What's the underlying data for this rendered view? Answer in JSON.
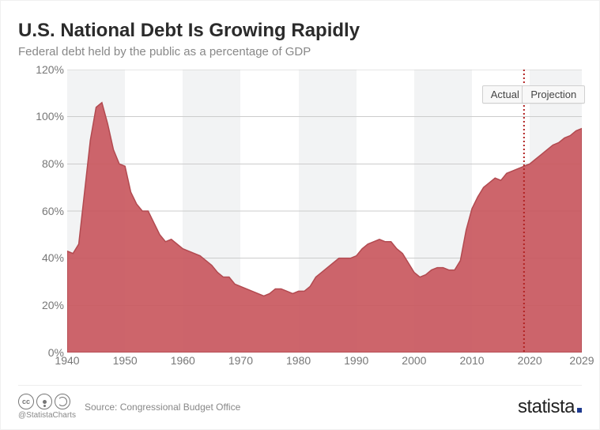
{
  "title": "U.S. National Debt Is Growing Rapidly",
  "subtitle": "Federal debt held by the public as a percentage of GDP",
  "footer": {
    "handle": "@StatistaCharts",
    "source_label": "Source:",
    "source_name": "Congressional Budget Office",
    "brand": "statista"
  },
  "chart": {
    "type": "area",
    "x_min": 1940,
    "x_max": 2029,
    "y_min": 0,
    "y_max": 120,
    "y_ticks": [
      0,
      20,
      40,
      60,
      80,
      100,
      120
    ],
    "y_tick_suffix": "%",
    "x_ticks": [
      1940,
      1950,
      1960,
      1970,
      1980,
      1990,
      2000,
      2010,
      2020,
      2029
    ],
    "band_edges": [
      1940,
      1950,
      1960,
      1970,
      1980,
      1990,
      2000,
      2010,
      2020,
      2029
    ],
    "band_colors": [
      "#f2f3f4",
      "#ffffff"
    ],
    "grid_color": "#cccccc",
    "axis_label_color": "#777777",
    "axis_fontsize": 14,
    "area_fill": "#c9585e",
    "area_fill_opacity": 0.92,
    "area_stroke": "#b24a50",
    "area_stroke_width": 1.5,
    "divider_year": 2019,
    "divider_color": "#b22222",
    "divider_dash": "2,3",
    "divider_width": 2,
    "legend": {
      "actual": {
        "label": "Actual",
        "anchor_year": 2015.3
      },
      "projection": {
        "label": "Projection",
        "anchor_year": 2024.0
      },
      "bg": "#f8f8f8",
      "border": "#d0d0d0",
      "fontsize": 13
    },
    "series": [
      {
        "x": 1940,
        "y": 43
      },
      {
        "x": 1941,
        "y": 42
      },
      {
        "x": 1942,
        "y": 46
      },
      {
        "x": 1943,
        "y": 68
      },
      {
        "x": 1944,
        "y": 90
      },
      {
        "x": 1945,
        "y": 104
      },
      {
        "x": 1946,
        "y": 106
      },
      {
        "x": 1947,
        "y": 97
      },
      {
        "x": 1948,
        "y": 86
      },
      {
        "x": 1949,
        "y": 80
      },
      {
        "x": 1950,
        "y": 79
      },
      {
        "x": 1951,
        "y": 68
      },
      {
        "x": 1952,
        "y": 63
      },
      {
        "x": 1953,
        "y": 60
      },
      {
        "x": 1954,
        "y": 60
      },
      {
        "x": 1955,
        "y": 55
      },
      {
        "x": 1956,
        "y": 50
      },
      {
        "x": 1957,
        "y": 47
      },
      {
        "x": 1958,
        "y": 48
      },
      {
        "x": 1959,
        "y": 46
      },
      {
        "x": 1960,
        "y": 44
      },
      {
        "x": 1961,
        "y": 43
      },
      {
        "x": 1962,
        "y": 42
      },
      {
        "x": 1963,
        "y": 41
      },
      {
        "x": 1964,
        "y": 39
      },
      {
        "x": 1965,
        "y": 37
      },
      {
        "x": 1966,
        "y": 34
      },
      {
        "x": 1967,
        "y": 32
      },
      {
        "x": 1968,
        "y": 32
      },
      {
        "x": 1969,
        "y": 29
      },
      {
        "x": 1970,
        "y": 28
      },
      {
        "x": 1971,
        "y": 27
      },
      {
        "x": 1972,
        "y": 26
      },
      {
        "x": 1973,
        "y": 25
      },
      {
        "x": 1974,
        "y": 24
      },
      {
        "x": 1975,
        "y": 25
      },
      {
        "x": 1976,
        "y": 27
      },
      {
        "x": 1977,
        "y": 27
      },
      {
        "x": 1978,
        "y": 26
      },
      {
        "x": 1979,
        "y": 25
      },
      {
        "x": 1980,
        "y": 26
      },
      {
        "x": 1981,
        "y": 26
      },
      {
        "x": 1982,
        "y": 28
      },
      {
        "x": 1983,
        "y": 32
      },
      {
        "x": 1984,
        "y": 34
      },
      {
        "x": 1985,
        "y": 36
      },
      {
        "x": 1986,
        "y": 38
      },
      {
        "x": 1987,
        "y": 40
      },
      {
        "x": 1988,
        "y": 40
      },
      {
        "x": 1989,
        "y": 40
      },
      {
        "x": 1990,
        "y": 41
      },
      {
        "x": 1991,
        "y": 44
      },
      {
        "x": 1992,
        "y": 46
      },
      {
        "x": 1993,
        "y": 47
      },
      {
        "x": 1994,
        "y": 48
      },
      {
        "x": 1995,
        "y": 47
      },
      {
        "x": 1996,
        "y": 47
      },
      {
        "x": 1997,
        "y": 44
      },
      {
        "x": 1998,
        "y": 42
      },
      {
        "x": 1999,
        "y": 38
      },
      {
        "x": 2000,
        "y": 34
      },
      {
        "x": 2001,
        "y": 32
      },
      {
        "x": 2002,
        "y": 33
      },
      {
        "x": 2003,
        "y": 35
      },
      {
        "x": 2004,
        "y": 36
      },
      {
        "x": 2005,
        "y": 36
      },
      {
        "x": 2006,
        "y": 35
      },
      {
        "x": 2007,
        "y": 35
      },
      {
        "x": 2008,
        "y": 39
      },
      {
        "x": 2009,
        "y": 52
      },
      {
        "x": 2010,
        "y": 61
      },
      {
        "x": 2011,
        "y": 66
      },
      {
        "x": 2012,
        "y": 70
      },
      {
        "x": 2013,
        "y": 72
      },
      {
        "x": 2014,
        "y": 74
      },
      {
        "x": 2015,
        "y": 73
      },
      {
        "x": 2016,
        "y": 76
      },
      {
        "x": 2017,
        "y": 77
      },
      {
        "x": 2018,
        "y": 78
      },
      {
        "x": 2019,
        "y": 79
      },
      {
        "x": 2020,
        "y": 80
      },
      {
        "x": 2021,
        "y": 82
      },
      {
        "x": 2022,
        "y": 84
      },
      {
        "x": 2023,
        "y": 86
      },
      {
        "x": 2024,
        "y": 88
      },
      {
        "x": 2025,
        "y": 89
      },
      {
        "x": 2026,
        "y": 91
      },
      {
        "x": 2027,
        "y": 92
      },
      {
        "x": 2028,
        "y": 94
      },
      {
        "x": 2029,
        "y": 95
      }
    ]
  }
}
